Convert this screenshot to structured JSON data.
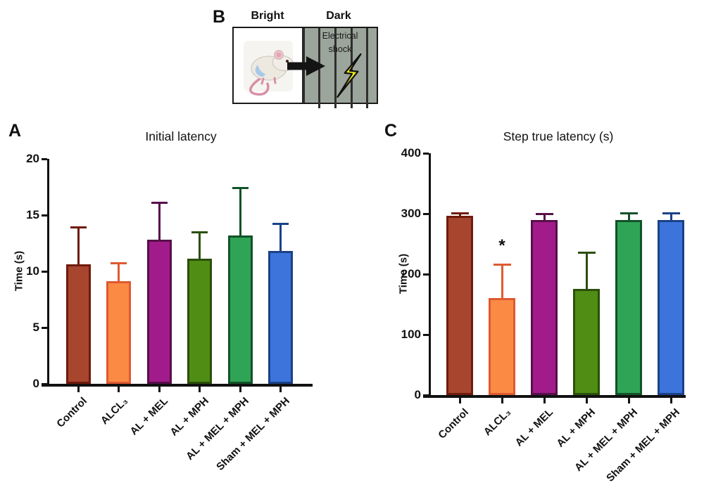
{
  "panels": {
    "a": {
      "letter": "A"
    },
    "b": {
      "letter": "B",
      "bright_label": "Bright",
      "dark_label": "Dark",
      "shock_line1": "Electrical",
      "shock_line2": "shock"
    },
    "c": {
      "letter": "C"
    }
  },
  "chart_data": [
    {
      "id": "initial-latency",
      "type": "bar",
      "title": "Initial latency",
      "ylabel": "Time (s)",
      "ylim": [
        0,
        20
      ],
      "yticks": [
        0,
        5,
        10,
        15,
        20
      ],
      "categories": [
        "Control",
        "ALCL₃",
        "AL + MEL",
        "AL + MPH",
        "AL + MEL + MPH",
        "Sham + MEL + MPH"
      ],
      "values": [
        10.6,
        9.1,
        12.8,
        11.1,
        13.2,
        11.8
      ],
      "error_top": [
        13.9,
        10.7,
        16.1,
        13.5,
        17.4,
        14.2
      ],
      "bar_fill_colors": [
        "#A7452E",
        "#FB8A45",
        "#A21B8A",
        "#4F8D15",
        "#2FA457",
        "#3C74DC"
      ],
      "bar_edge_colors": [
        "#701B0D",
        "#DE5A30",
        "#57104A",
        "#2B4F0B",
        "#135229",
        "#1B4187"
      ],
      "grid": false,
      "legend": "none",
      "significance": []
    },
    {
      "id": "step-true-latency",
      "type": "bar",
      "title": "Step true latency (s)",
      "ylabel": "Time (s)",
      "ylim": [
        0,
        400
      ],
      "yticks": [
        0,
        100,
        200,
        300,
        400
      ],
      "categories": [
        "Control",
        "ALCL₃",
        "AL + MEL",
        "AL + MPH",
        "AL + MEL + MPH",
        "Sham + MEL + MPH"
      ],
      "values": [
        297,
        160,
        290,
        176,
        289,
        289
      ],
      "error_top": [
        301,
        216,
        300,
        236,
        301,
        301
      ],
      "bar_fill_colors": [
        "#A7452E",
        "#FB8A45",
        "#A21B8A",
        "#4F8D15",
        "#2FA457",
        "#3C74DC"
      ],
      "bar_edge_colors": [
        "#701B0D",
        "#DE5A30",
        "#57104A",
        "#2B4F0B",
        "#135229",
        "#1B4187"
      ],
      "grid": false,
      "legend": "none",
      "significance": [
        {
          "index": 1,
          "symbol": "*",
          "y": 246
        }
      ]
    }
  ]
}
